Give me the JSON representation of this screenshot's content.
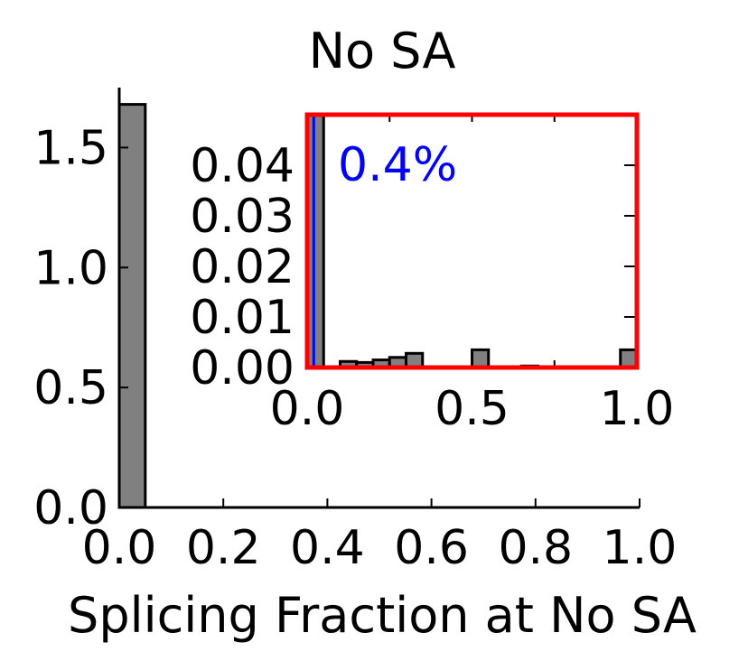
{
  "chart_data": [
    {
      "type": "bar",
      "panel": "main",
      "title": "No SA",
      "xlabel": "Splicing Fraction at No SA",
      "ylabel": "",
      "xlim": [
        0.0,
        1.0
      ],
      "ylim": [
        0.0,
        1.75
      ],
      "xticks": [
        "0.0",
        "0.2",
        "0.4",
        "0.6",
        "0.8",
        "1.0"
      ],
      "yticks": [
        "0.0",
        "0.5",
        "1.0",
        "1.5"
      ],
      "bin_width": 0.05,
      "bins": [
        {
          "x0": 0.0,
          "x1": 0.05,
          "value": 1.68
        }
      ],
      "highlight_box": {
        "x0": 0.0,
        "x1": 1.0,
        "y0": 0.0,
        "y1": 0.05,
        "color": "#ff0000"
      },
      "bar_color": "#808080",
      "grid": false
    },
    {
      "type": "bar",
      "panel": "inset",
      "xlim": [
        0.0,
        1.0
      ],
      "ylim": [
        0.0,
        0.05
      ],
      "xticks": [
        "0.0",
        "0.5",
        "1.0"
      ],
      "yticks": [
        "0.00",
        "0.01",
        "0.02",
        "0.03",
        "0.04"
      ],
      "bin_width": 0.05,
      "bins": [
        {
          "x0": 0.0,
          "x1": 0.05,
          "value": 0.05
        },
        {
          "x0": 0.1,
          "x1": 0.15,
          "value": 0.0012
        },
        {
          "x0": 0.15,
          "x1": 0.2,
          "value": 0.001
        },
        {
          "x0": 0.2,
          "x1": 0.25,
          "value": 0.0015
        },
        {
          "x0": 0.25,
          "x1": 0.3,
          "value": 0.002
        },
        {
          "x0": 0.3,
          "x1": 0.35,
          "value": 0.0028
        },
        {
          "x0": 0.5,
          "x1": 0.55,
          "value": 0.0035
        },
        {
          "x0": 0.65,
          "x1": 0.7,
          "value": 0.0003
        },
        {
          "x0": 0.95,
          "x1": 1.0,
          "value": 0.0035
        }
      ],
      "threshold_x": 0.02,
      "threshold_color": "#0000ff",
      "annotation": {
        "text": "0.4%",
        "color": "#0000ff"
      },
      "frame_color": "#ff0000",
      "bar_color": "#808080",
      "grid": false
    }
  ]
}
